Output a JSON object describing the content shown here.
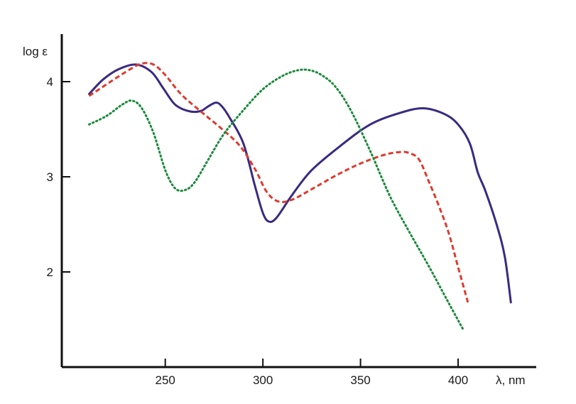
{
  "chart_data": {
    "type": "line",
    "title": "",
    "xlabel": "λ, nm",
    "ylabel": "log ε",
    "xlim": [
      197,
      440
    ],
    "ylim": [
      1.0,
      4.5
    ],
    "x_ticks": [
      250,
      300,
      350,
      400
    ],
    "y_ticks": [
      2,
      3,
      4
    ],
    "x_tick_labels": [
      "250",
      "300",
      "350",
      "400"
    ],
    "y_tick_labels": [
      "2",
      "3",
      "4"
    ],
    "grid": false,
    "legend": "none",
    "series": [
      {
        "color": "#3a2a80",
        "line_style": "solid",
        "x": [
          211,
          218,
          226,
          235,
          243,
          249,
          255,
          262,
          268,
          272,
          276,
          279,
          283,
          290,
          296,
          300,
          303,
          307,
          315,
          325,
          340,
          355,
          370,
          382,
          393,
          400,
          406,
          410,
          414,
          420,
          424,
          427
        ],
        "y": [
          3.87,
          4.02,
          4.13,
          4.18,
          4.1,
          3.93,
          3.76,
          3.69,
          3.69,
          3.74,
          3.78,
          3.74,
          3.62,
          3.35,
          2.9,
          2.62,
          2.53,
          2.57,
          2.81,
          3.07,
          3.33,
          3.55,
          3.67,
          3.72,
          3.66,
          3.55,
          3.35,
          3.05,
          2.85,
          2.48,
          2.15,
          1.68
        ]
      },
      {
        "color": "#dd3b2f",
        "line_style": "dashed",
        "x": [
          211,
          222,
          232,
          238,
          244,
          250,
          258,
          268,
          278,
          288,
          296,
          302,
          308,
          315,
          325,
          338,
          350,
          362,
          370,
          375,
          380,
          385,
          390,
          395,
          400,
          405
        ],
        "y": [
          3.85,
          4.0,
          4.13,
          4.19,
          4.18,
          4.07,
          3.87,
          3.69,
          3.52,
          3.33,
          3.08,
          2.84,
          2.74,
          2.76,
          2.87,
          3.02,
          3.14,
          3.23,
          3.26,
          3.25,
          3.18,
          2.95,
          2.7,
          2.42,
          2.05,
          1.68
        ]
      },
      {
        "color": "#1a8a3a",
        "line_style": "dotted",
        "x": [
          211,
          220,
          228,
          233,
          238,
          244,
          250,
          255,
          260,
          265,
          272,
          280,
          290,
          300,
          310,
          318,
          324,
          330,
          337,
          345,
          355,
          365,
          375,
          385,
          395,
          403
        ],
        "y": [
          3.55,
          3.64,
          3.76,
          3.8,
          3.72,
          3.46,
          3.07,
          2.88,
          2.86,
          2.94,
          3.18,
          3.45,
          3.7,
          3.92,
          4.06,
          4.12,
          4.12,
          4.07,
          3.95,
          3.7,
          3.27,
          2.8,
          2.42,
          2.06,
          1.68,
          1.38
        ]
      }
    ]
  }
}
